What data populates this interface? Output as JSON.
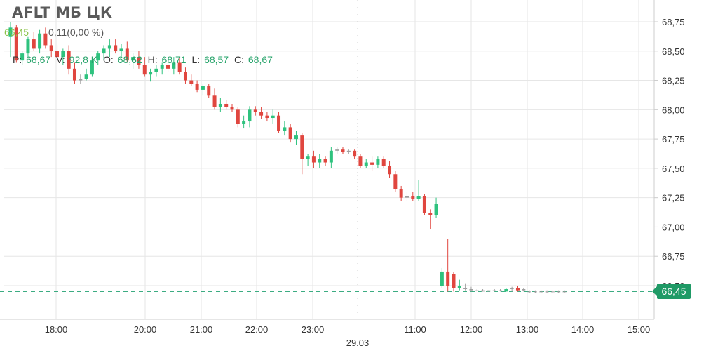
{
  "header": {
    "title": "AFLT МБ ЦК",
    "last_price": "66,45",
    "change": "0,11(0,00 %)"
  },
  "ohlc": {
    "p_label": "P:",
    "p_value": "68,67",
    "v_label": "V:",
    "v_value": "92,8 K",
    "o_label": "O:",
    "o_value": "68,62",
    "h_label": "H:",
    "h_value": "68,71",
    "l_label": "L:",
    "l_value": "68,57",
    "c_label": "C:",
    "c_value": "68,67"
  },
  "price_tag": "66,45",
  "colors": {
    "up": "#2ec27e",
    "down": "#e0463f",
    "grid": "#e6e6e6",
    "axis": "#cccccc",
    "dashed": "#20a070"
  },
  "chart_data": {
    "type": "candlestick",
    "title": "AFLT МБ ЦК",
    "ylim": [
      66.25,
      68.85
    ],
    "yticks": [
      "66,50",
      "66,75",
      "67,00",
      "67,25",
      "67,50",
      "67,75",
      "68,00",
      "68,25",
      "68,50",
      "68,75"
    ],
    "ytick_values": [
      66.5,
      66.75,
      67.0,
      67.25,
      67.5,
      67.75,
      68.0,
      68.25,
      68.5,
      68.75
    ],
    "xticks": [
      "18:00",
      "20:00",
      "21:00",
      "22:00",
      "23:00",
      "11:00",
      "12:00",
      "13:00",
      "14:00",
      "15:00"
    ],
    "date_marker": "29.03",
    "current_price": 66.45,
    "candles": [
      [
        68.62,
        68.75,
        68.45,
        68.7
      ],
      [
        68.7,
        68.72,
        68.4,
        68.42
      ],
      [
        68.42,
        68.5,
        68.38,
        68.48
      ],
      [
        68.48,
        68.62,
        68.45,
        68.6
      ],
      [
        68.6,
        68.66,
        68.5,
        68.52
      ],
      [
        68.52,
        68.68,
        68.48,
        68.65
      ],
      [
        68.65,
        68.7,
        68.52,
        68.55
      ],
      [
        68.55,
        68.6,
        68.45,
        68.5
      ],
      [
        68.5,
        68.55,
        68.4,
        68.45
      ],
      [
        68.45,
        68.52,
        68.38,
        68.5
      ],
      [
        68.5,
        68.55,
        68.3,
        68.35
      ],
      [
        68.35,
        68.4,
        68.22,
        68.25
      ],
      [
        68.25,
        68.3,
        68.22,
        68.26
      ],
      [
        68.26,
        68.35,
        68.25,
        68.3
      ],
      [
        68.3,
        68.45,
        68.28,
        68.42
      ],
      [
        68.42,
        68.5,
        68.38,
        68.48
      ],
      [
        68.48,
        68.55,
        68.42,
        68.52
      ],
      [
        68.52,
        68.6,
        68.45,
        68.55
      ],
      [
        68.55,
        68.6,
        68.48,
        68.5
      ],
      [
        68.5,
        68.56,
        68.45,
        68.52
      ],
      [
        68.52,
        68.58,
        68.4,
        68.42
      ],
      [
        68.42,
        68.48,
        68.35,
        68.45
      ],
      [
        68.45,
        68.5,
        68.35,
        68.38
      ],
      [
        68.38,
        68.45,
        68.28,
        68.3
      ],
      [
        68.3,
        68.35,
        68.24,
        68.32
      ],
      [
        68.32,
        68.38,
        68.28,
        68.35
      ],
      [
        68.35,
        68.4,
        68.3,
        68.38
      ],
      [
        68.38,
        68.42,
        68.32,
        68.35
      ],
      [
        68.35,
        68.45,
        68.3,
        68.4
      ],
      [
        68.4,
        68.45,
        68.3,
        68.32
      ],
      [
        68.32,
        68.36,
        68.22,
        68.25
      ],
      [
        68.25,
        68.3,
        68.2,
        68.22
      ],
      [
        68.22,
        68.25,
        68.15,
        68.17
      ],
      [
        68.17,
        68.22,
        68.12,
        68.2
      ],
      [
        68.2,
        68.22,
        68.1,
        68.12
      ],
      [
        68.12,
        68.18,
        68.0,
        68.02
      ],
      [
        68.02,
        68.1,
        67.98,
        68.05
      ],
      [
        68.05,
        68.08,
        68.0,
        68.02
      ],
      [
        68.02,
        68.05,
        67.98,
        68.0
      ],
      [
        68.0,
        68.02,
        67.85,
        67.88
      ],
      [
        67.88,
        67.95,
        67.84,
        67.9
      ],
      [
        67.9,
        68.03,
        67.85,
        68.0
      ],
      [
        68.0,
        68.03,
        67.95,
        67.98
      ],
      [
        67.98,
        68.02,
        67.92,
        67.95
      ],
      [
        67.95,
        67.98,
        67.9,
        67.93
      ],
      [
        67.93,
        68.0,
        67.88,
        67.95
      ],
      [
        67.95,
        67.98,
        67.8,
        67.82
      ],
      [
        67.82,
        67.9,
        67.78,
        67.85
      ],
      [
        67.85,
        67.88,
        67.72,
        67.75
      ],
      [
        67.75,
        67.82,
        67.7,
        67.78
      ],
      [
        67.78,
        67.8,
        67.45,
        67.58
      ],
      [
        67.58,
        67.62,
        67.52,
        67.6
      ],
      [
        67.6,
        67.65,
        67.5,
        67.55
      ],
      [
        67.55,
        67.62,
        67.5,
        67.58
      ],
      [
        67.58,
        67.6,
        67.52,
        67.55
      ],
      [
        67.55,
        67.68,
        67.5,
        67.65
      ],
      [
        67.65,
        67.68,
        67.62,
        67.66
      ],
      [
        67.66,
        67.68,
        67.62,
        67.64
      ],
      [
        67.64,
        67.66,
        67.62,
        67.65
      ],
      [
        67.65,
        67.66,
        67.58,
        67.6
      ],
      [
        67.6,
        67.62,
        67.5,
        67.52
      ],
      [
        67.52,
        67.58,
        67.5,
        67.55
      ],
      [
        67.55,
        67.6,
        67.48,
        67.53
      ],
      [
        67.53,
        67.6,
        67.5,
        67.58
      ],
      [
        67.58,
        67.6,
        67.5,
        67.52
      ],
      [
        67.52,
        67.56,
        67.42,
        67.45
      ],
      [
        67.45,
        67.48,
        67.3,
        67.32
      ],
      [
        67.32,
        67.35,
        67.22,
        67.25
      ],
      [
        67.25,
        67.3,
        67.22,
        67.26
      ],
      [
        67.26,
        67.3,
        67.22,
        67.24
      ],
      [
        67.24,
        67.4,
        67.22,
        67.26
      ],
      [
        67.26,
        67.28,
        67.1,
        67.12
      ],
      [
        67.12,
        67.15,
        66.98,
        67.1
      ],
      [
        67.1,
        67.25,
        67.08,
        67.2
      ],
      [
        66.5,
        66.65,
        66.48,
        66.62
      ],
      [
        66.62,
        66.9,
        66.45,
        66.5
      ],
      [
        66.6,
        66.62,
        66.45,
        66.48
      ],
      [
        66.48,
        66.55,
        66.46,
        66.5
      ],
      [
        66.48,
        66.52,
        66.46,
        66.47
      ],
      [
        66.47,
        66.49,
        66.45,
        66.46
      ],
      [
        66.46,
        66.47,
        66.45,
        66.46
      ],
      [
        66.46,
        66.47,
        66.45,
        66.45
      ],
      [
        66.45,
        66.46,
        66.45,
        66.46
      ],
      [
        66.46,
        66.47,
        66.45,
        66.46
      ],
      [
        66.46,
        66.47,
        66.45,
        66.46
      ],
      [
        66.45,
        66.48,
        66.45,
        66.47
      ],
      [
        66.47,
        66.49,
        66.45,
        66.48
      ],
      [
        66.48,
        66.5,
        66.45,
        66.46
      ],
      [
        66.46,
        66.48,
        66.45,
        66.47
      ],
      [
        66.45,
        66.46,
        66.44,
        66.45
      ],
      [
        66.45,
        66.46,
        66.44,
        66.45
      ],
      [
        66.45,
        66.46,
        66.44,
        66.45
      ],
      [
        66.45,
        66.46,
        66.44,
        66.45
      ],
      [
        66.45,
        66.46,
        66.44,
        66.45
      ],
      [
        66.45,
        66.46,
        66.44,
        66.45
      ],
      [
        66.45,
        66.46,
        66.44,
        66.45
      ]
    ]
  }
}
